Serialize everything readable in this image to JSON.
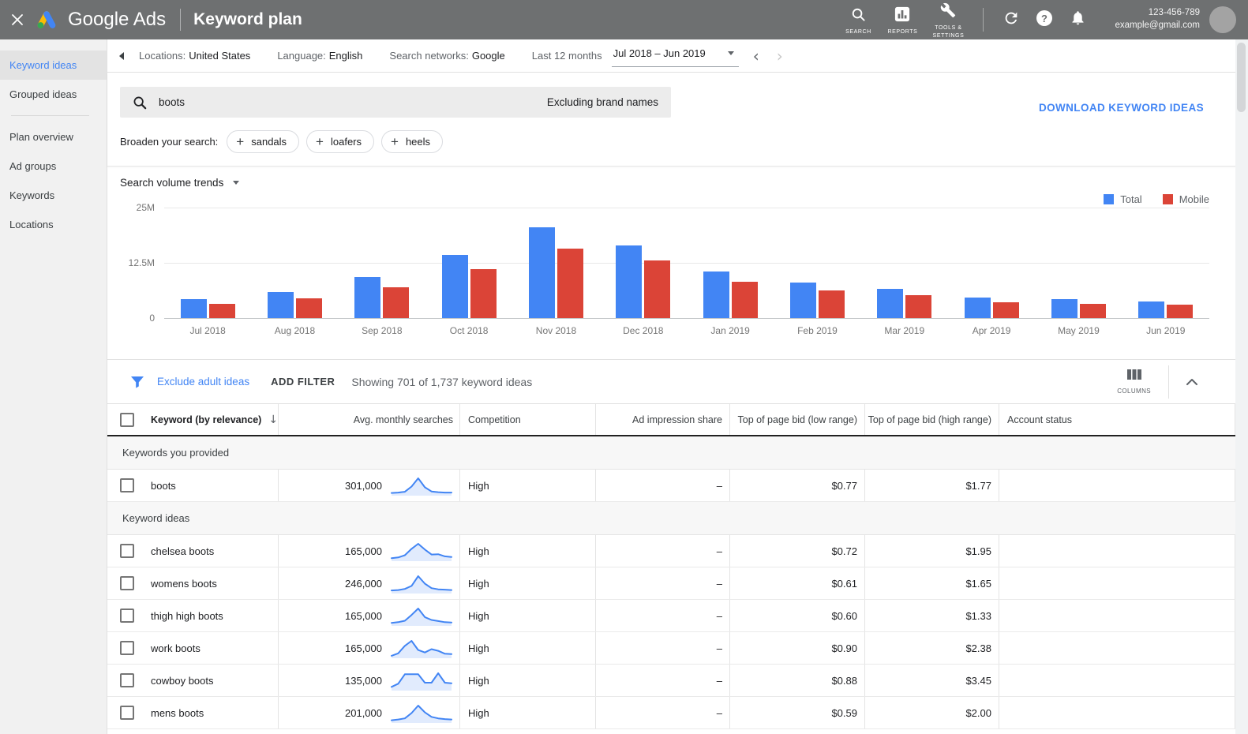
{
  "topbar": {
    "brand": "Google Ads",
    "page_title": "Keyword plan",
    "nav": [
      {
        "label": "SEARCH",
        "icon": "search-icon"
      },
      {
        "label": "REPORTS",
        "icon": "reports-icon"
      },
      {
        "label": "TOOLS & SETTINGS",
        "icon": "wrench-icon"
      }
    ],
    "account": {
      "id": "123-456-789",
      "email": "example@gmail.com"
    },
    "bar_color": "#6e7071"
  },
  "sidebar": {
    "items": [
      {
        "label": "Keyword ideas",
        "selected": true
      },
      {
        "label": "Grouped ideas",
        "selected": false
      },
      {
        "divider": true
      },
      {
        "label": "Plan overview",
        "selected": false
      },
      {
        "label": "Ad groups",
        "selected": false
      },
      {
        "label": "Keywords",
        "selected": false
      },
      {
        "label": "Locations",
        "selected": false
      }
    ]
  },
  "filterbar": {
    "filters": [
      {
        "label": "Locations:",
        "value": "United States"
      },
      {
        "label": "Language:",
        "value": "English"
      },
      {
        "label": "Search networks:",
        "value": "Google"
      }
    ],
    "date_label": "Last 12 months",
    "date_range": "Jul 2018 – Jun 2019"
  },
  "search": {
    "query": "boots",
    "exclusion": "Excluding brand names",
    "download_label": "DOWNLOAD KEYWORD IDEAS"
  },
  "broaden": {
    "label": "Broaden your search:",
    "chips": [
      "sandals",
      "loafers",
      "heels"
    ]
  },
  "trends": {
    "title": "Search volume trends"
  },
  "chart_data": {
    "type": "bar",
    "title": "Search volume trends",
    "categories": [
      "Jul 2018",
      "Aug 2018",
      "Sep 2018",
      "Oct 2018",
      "Nov 2018",
      "Dec 2018",
      "Jan 2019",
      "Feb 2019",
      "Mar 2019",
      "Apr 2019",
      "May 2019",
      "Jun 2019"
    ],
    "series": [
      {
        "name": "Total",
        "color": "#4285f4",
        "values": [
          4.2,
          5.9,
          9.2,
          14.3,
          20.5,
          16.4,
          10.6,
          8.0,
          6.6,
          4.6,
          4.2,
          3.8
        ]
      },
      {
        "name": "Mobile",
        "color": "#db4437",
        "values": [
          3.2,
          4.5,
          7.0,
          11.0,
          15.8,
          13.0,
          8.3,
          6.2,
          5.2,
          3.6,
          3.3,
          3.0
        ]
      }
    ],
    "unit": "M",
    "ylim": [
      0,
      25
    ],
    "yticks": [
      "0",
      "12.5M",
      "25M"
    ],
    "grid": true,
    "legend_position": "top-right"
  },
  "toolbar": {
    "exclude_label": "Exclude adult ideas",
    "add_filter_label": "ADD FILTER",
    "showing_text": "Showing 701 of 1,737 keyword ideas",
    "columns_label": "COLUMNS"
  },
  "table": {
    "columns": [
      "Keyword (by relevance)",
      "Avg. monthly searches",
      "Competition",
      "Ad impression share",
      "Top of page bid (low range)",
      "Top of page bid (high range)",
      "Account status"
    ],
    "sections": [
      {
        "label": "Keywords you provided",
        "rows": [
          {
            "keyword": "boots",
            "avg_monthly_searches": "301,000",
            "competition": "High",
            "ad_impression_share": "–",
            "bid_low": "$0.77",
            "bid_high": "$1.77",
            "account_status": "",
            "sparkline": [
              3,
              4,
              6,
              20,
              42,
              18,
              7,
              5,
              4,
              4
            ]
          }
        ]
      },
      {
        "label": "Keyword ideas",
        "rows": [
          {
            "keyword": "chelsea boots",
            "avg_monthly_searches": "165,000",
            "competition": "High",
            "ad_impression_share": "–",
            "bid_low": "$0.72",
            "bid_high": "$1.95",
            "account_status": "",
            "sparkline": [
              4,
              6,
              12,
              30,
              44,
              28,
              14,
              15,
              9,
              7
            ]
          },
          {
            "keyword": "womens boots",
            "avg_monthly_searches": "246,000",
            "competition": "High",
            "ad_impression_share": "–",
            "bid_low": "$0.61",
            "bid_high": "$1.65",
            "account_status": "",
            "sparkline": [
              4,
              5,
              8,
              16,
              42,
              22,
              10,
              7,
              6,
              5
            ]
          },
          {
            "keyword": "thigh high boots",
            "avg_monthly_searches": "165,000",
            "competition": "High",
            "ad_impression_share": "–",
            "bid_low": "$0.60",
            "bid_high": "$1.33",
            "account_status": "",
            "sparkline": [
              4,
              6,
              10,
              26,
              44,
              20,
              12,
              9,
              6,
              5
            ]
          },
          {
            "keyword": "work boots",
            "avg_monthly_searches": "165,000",
            "competition": "High",
            "ad_impression_share": "–",
            "bid_low": "$0.90",
            "bid_high": "$2.38",
            "account_status": "",
            "sparkline": [
              2,
              8,
              26,
              38,
              16,
              10,
              18,
              14,
              7,
              6
            ]
          },
          {
            "keyword": "cowboy boots",
            "avg_monthly_searches": "135,000",
            "competition": "High",
            "ad_impression_share": "–",
            "bid_low": "$0.88",
            "bid_high": "$3.45",
            "account_status": "",
            "sparkline": [
              4,
              10,
              28,
              28,
              28,
              12,
              12,
              30,
              12,
              11
            ]
          },
          {
            "keyword": "mens boots",
            "avg_monthly_searches": "201,000",
            "competition": "High",
            "ad_impression_share": "–",
            "bid_low": "$0.59",
            "bid_high": "$2.00",
            "account_status": "",
            "sparkline": [
              3,
              5,
              8,
              22,
              42,
              24,
              12,
              8,
              6,
              5
            ]
          }
        ]
      }
    ]
  }
}
